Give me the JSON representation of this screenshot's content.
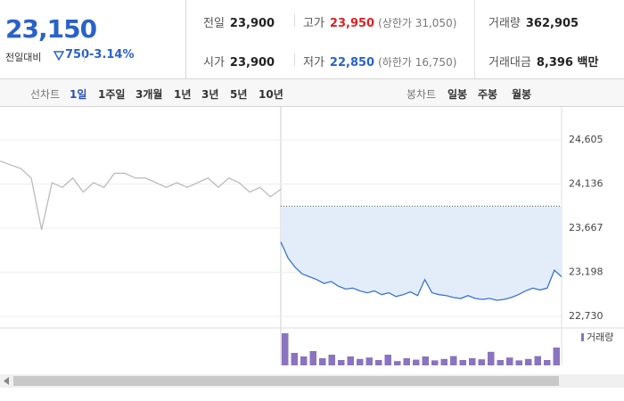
{
  "quote": {
    "price": "23,150",
    "change_label": "전일대비",
    "change": "750",
    "change_pct": "-3.14%"
  },
  "summary": [
    {
      "label": "전일",
      "value": "23,900"
    },
    {
      "label": "고가",
      "value": "23,950",
      "note": "(상한가 31,050)"
    },
    {
      "label": "거래량",
      "value": "362,905"
    },
    {
      "label": "시가",
      "value": "23,900"
    },
    {
      "label": "저가",
      "value": "22,850",
      "note": "(하한가 16,750)"
    },
    {
      "label": "거래대금",
      "value": "8,396 백만"
    }
  ],
  "tabs": {
    "line_label": "선차트",
    "periods": [
      "1일",
      "1주일",
      "3개월",
      "1년",
      "3년",
      "5년",
      "10년"
    ],
    "candle_label": "봉차트",
    "candles": [
      "일봉",
      "주봉",
      "월봉"
    ]
  },
  "chart_data": {
    "type": "line",
    "ylim": [
      22635,
      24955
    ],
    "yticks": [
      {
        "value": 24605,
        "label": "24,605"
      },
      {
        "value": 24136,
        "label": "24,136"
      },
      {
        "value": 23667,
        "label": "23,667"
      },
      {
        "value": 23198,
        "label": "23,198"
      },
      {
        "value": 22730,
        "label": "22,730"
      }
    ],
    "grid": true,
    "reference": 23900,
    "series": [
      {
        "color": "#bbbbbb",
        "values": [
          24380,
          24340,
          24300,
          24200,
          23650,
          24150,
          24100,
          24200,
          24050,
          24150,
          24100,
          24250,
          24250,
          24200,
          24200,
          24150,
          24100,
          24150,
          24100,
          24150,
          24200,
          24100,
          24200,
          24150,
          24050,
          24100,
          24000,
          24080
        ]
      },
      {
        "color": "#3b73d4",
        "values": [
          23520,
          23350,
          23250,
          23180,
          23150,
          23120,
          23080,
          23100,
          23050,
          23020,
          23030,
          23000,
          22980,
          23000,
          22960,
          22980,
          22940,
          22960,
          22990,
          22950,
          23120,
          22980,
          22960,
          22950,
          22930,
          22920,
          22950,
          22920,
          22910,
          22920,
          22900,
          22910,
          22930,
          22960,
          23000,
          23030,
          23010,
          23030,
          23220,
          23150
        ]
      }
    ],
    "volume_label": "거래량",
    "volume_color": "#8a74c0",
    "vlim": [
      0,
      10000
    ],
    "volume": [
      9000,
      3500,
      2500,
      4000,
      2000,
      3000,
      1500,
      2500,
      1800,
      2200,
      1500,
      3000,
      1200,
      2000,
      1600,
      2500,
      1400,
      1800,
      2600,
      1500,
      2000,
      1700,
      3800,
      1500,
      2200,
      1400,
      1800,
      2600,
      1500,
      5000
    ]
  }
}
